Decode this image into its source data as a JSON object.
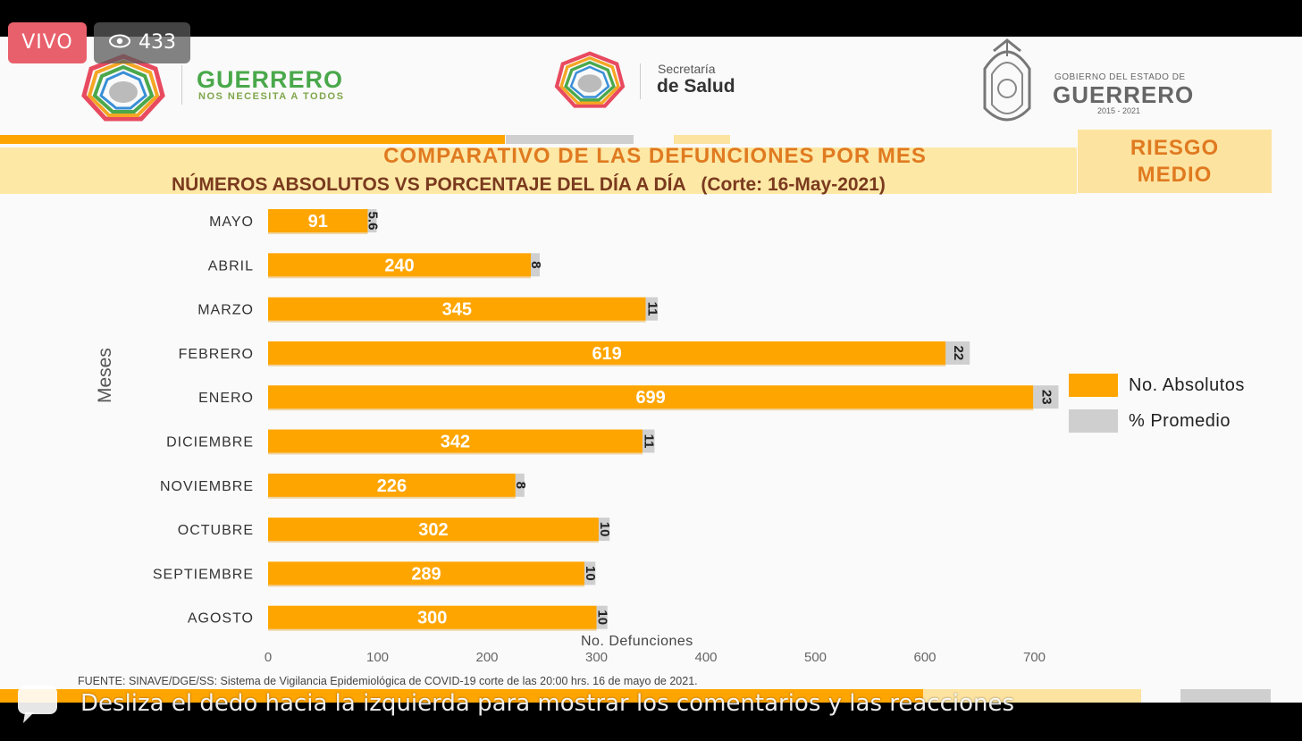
{
  "overlay": {
    "live_label": "VIVO",
    "viewer_count": "433",
    "swipe_hint": "Desliza el dedo hacia la izquierda para mostrar los comentarios y las reacciones"
  },
  "header": {
    "guerrero_logo": {
      "name": "GUERRERO",
      "tagline": "NOS NECESITA A TODOS"
    },
    "salud_logo": {
      "line1": "Secretaría",
      "line2": "de Salud"
    },
    "gobierno_logo": {
      "line1": "GOBIERNO DEL ESTADO DE",
      "line2": "GUERRERO",
      "years": "2015 - 2021"
    }
  },
  "title": {
    "line1": "COMPARATIVO DE LAS DEFUNCIONES POR MES",
    "line2": "NÚMEROS ABSOLUTOS VS PORCENTAJE DEL DÍA A DÍA   (Corte: 16-May-2021)"
  },
  "risk": {
    "line1": "RIESGO",
    "line2": "MEDIO"
  },
  "colors": {
    "absolute": "#ffa500",
    "percent": "#cfcfcf",
    "accent_text": "#e07a20"
  },
  "chart_data": {
    "type": "bar",
    "orientation": "horizontal",
    "stacked": true,
    "categories": [
      "MAYO",
      "ABRIL",
      "MARZO",
      "FEBRERO",
      "ENERO",
      "DICIEMBRE",
      "NOVIEMBRE",
      "OCTUBRE",
      "SEPTIEMBRE",
      "AGOSTO"
    ],
    "series": [
      {
        "name": "No. Absolutos",
        "values": [
          91,
          240,
          345,
          619,
          699,
          342,
          226,
          302,
          289,
          300
        ],
        "labels": [
          "91",
          "240",
          "345",
          "619",
          "699",
          "342",
          "226",
          "302",
          "289",
          "300"
        ]
      },
      {
        "name": "% Promedio",
        "values": [
          5.6,
          8,
          11,
          22,
          23,
          11,
          8,
          10,
          10,
          10
        ],
        "labels": [
          "5.6",
          "8",
          "11",
          "22",
          "23",
          "11",
          "8",
          "10",
          "10",
          "10"
        ]
      }
    ],
    "xlabel": "No. Defunciones",
    "ylabel": "Meses",
    "xlim": [
      0,
      700
    ],
    "xticks": [
      "0",
      "100",
      "200",
      "300",
      "400",
      "500",
      "600",
      "700"
    ],
    "legend_position": "right"
  },
  "source": "FUENTE: SINAVE/DGE/SS: Sistema de Vigilancia Epidemiológica de COVID-19 corte de las 20:00 hrs. 16 de mayo  de 2021."
}
